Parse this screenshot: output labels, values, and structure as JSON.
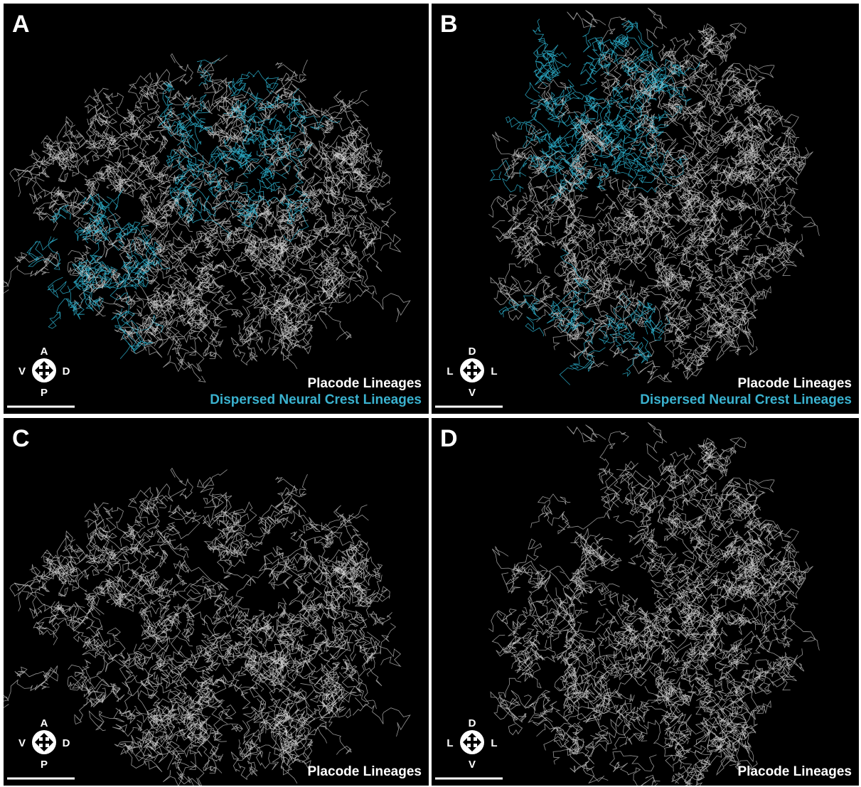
{
  "panels": [
    {
      "label": "A",
      "legend": [
        "Placode Lineages",
        "Dispersed Neural Crest Lineages"
      ],
      "compass": {
        "top": "A",
        "left": "V",
        "right": "D",
        "bottom": "P"
      }
    },
    {
      "label": "B",
      "legend": [
        "Placode Lineages",
        "Dispersed Neural Crest Lineages"
      ],
      "compass": {
        "top": "D",
        "left": "L",
        "right": "L",
        "bottom": "V"
      }
    },
    {
      "label": "C",
      "legend": [
        "Placode Lineages"
      ],
      "compass": {
        "top": "A",
        "left": "V",
        "right": "D",
        "bottom": "P"
      }
    },
    {
      "label": "D",
      "legend": [
        "Placode Lineages"
      ],
      "compass": {
        "top": "D",
        "left": "L",
        "right": "L",
        "bottom": "V"
      }
    }
  ]
}
